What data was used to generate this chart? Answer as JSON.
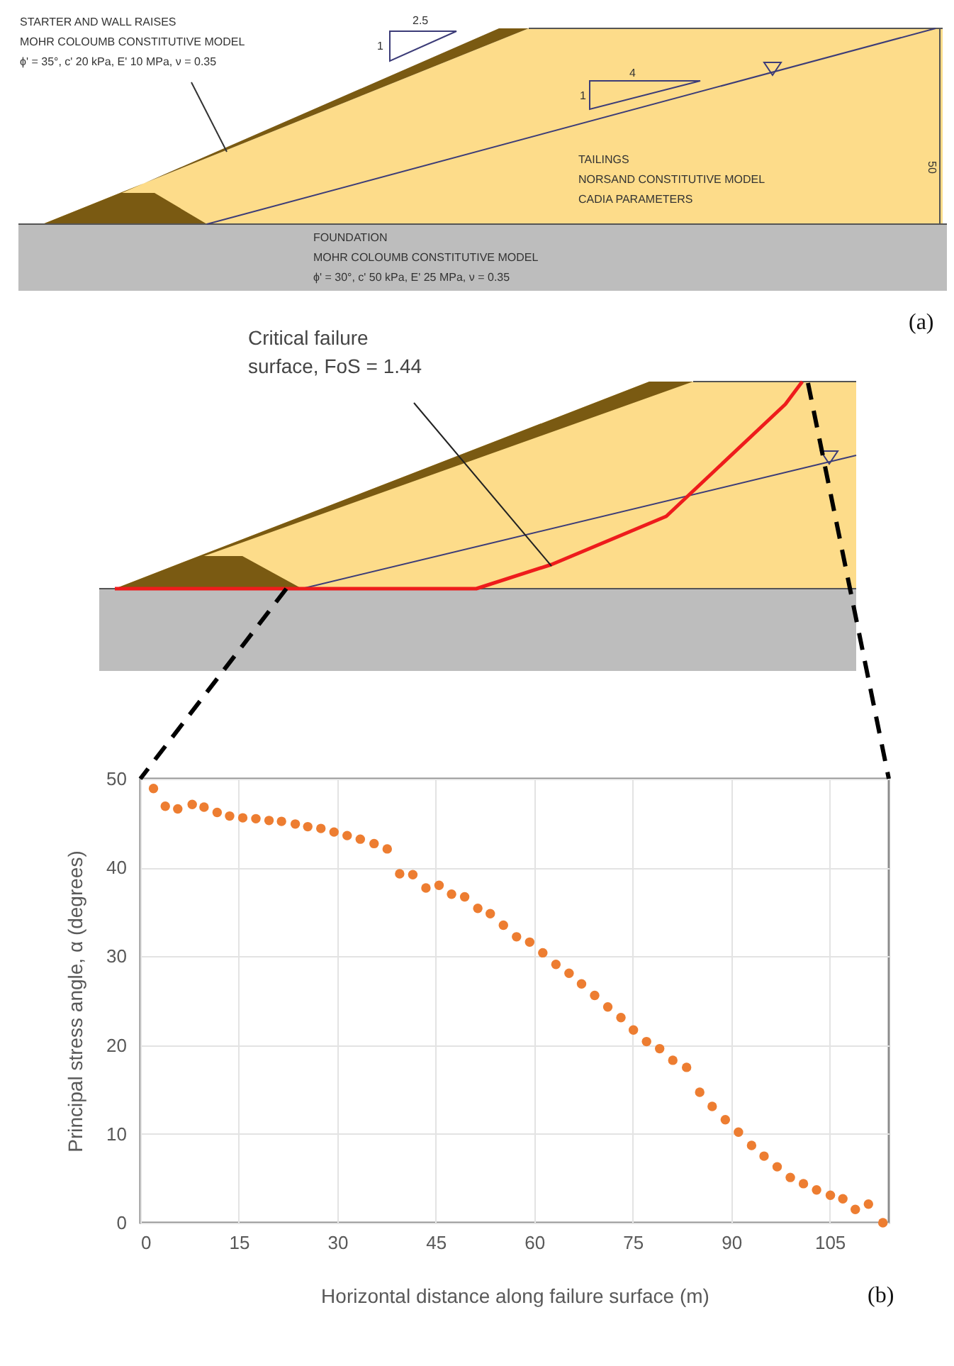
{
  "chart_data": {
    "type": "scatter",
    "xlabel": "Horizontal distance along failure surface (m)",
    "ylabel": "Principal stress angle, α (degrees)",
    "x": [
      2.0,
      3.8,
      5.7,
      7.9,
      9.7,
      11.7,
      13.6,
      15.6,
      17.6,
      19.6,
      21.5,
      23.6,
      25.5,
      27.5,
      29.5,
      31.5,
      33.5,
      35.6,
      37.6,
      39.5,
      41.5,
      43.5,
      45.5,
      47.4,
      49.4,
      51.4,
      53.3,
      55.3,
      57.3,
      59.3,
      61.3,
      63.3,
      65.3,
      67.2,
      69.2,
      71.2,
      73.2,
      75.1,
      77.1,
      79.1,
      81.1,
      83.2,
      85.2,
      87.1,
      89.1,
      91.1,
      93.1,
      95.0,
      97.0,
      99.0,
      101.0,
      103.0,
      105.1,
      107.0,
      108.9,
      110.9,
      113.1
    ],
    "series": [
      {
        "color": "#ed7d31",
        "values": [
          48.9,
          46.9,
          46.6,
          47.1,
          46.8,
          46.2,
          45.8,
          45.6,
          45.5,
          45.3,
          45.2,
          44.9,
          44.6,
          44.4,
          44.0,
          43.6,
          43.2,
          42.7,
          42.1,
          39.3,
          39.2,
          37.7,
          38.0,
          37.0,
          36.7,
          35.4,
          34.8,
          33.5,
          32.2,
          31.6,
          30.4,
          29.1,
          28.1,
          26.9,
          25.6,
          24.3,
          23.1,
          21.7,
          20.4,
          19.6,
          18.3,
          17.5,
          14.7,
          13.1,
          11.6,
          10.2,
          8.7,
          7.5,
          6.3,
          5.1,
          4.4,
          3.7,
          3.1,
          2.7,
          1.5,
          2.1,
          0.0
        ]
      }
    ],
    "xlim": [
      0,
      114
    ],
    "ylim": [
      0,
      50
    ],
    "xticks": [
      0,
      15,
      30,
      45,
      60,
      75,
      90,
      105
    ],
    "yticks": [
      0,
      10,
      20,
      30,
      40,
      50
    ],
    "grid": true,
    "marker": "circle",
    "annotations": [
      "STARTER AND WALL RAISES",
      "MOHR COLOUMB CONSTITUTIVE MODEL",
      "ϕ' = 35°, c' 20 kPa, E' 10 MPa, ν = 0.35",
      "2.5",
      "1",
      "4",
      "1",
      "50",
      "TAILINGS",
      "NORSAND CONSTITUTIVE MODEL",
      "CADIA PARAMETERS",
      "FOUNDATION",
      "MOHR COLOUMB CONSTITUTIVE MODEL",
      "ϕ' = 30°, c' 50 kPa, E' 25 MPa, ν = 0.35",
      "(a)",
      "Critical failure",
      "surface, FoS = 1.44",
      "(b)"
    ]
  }
}
